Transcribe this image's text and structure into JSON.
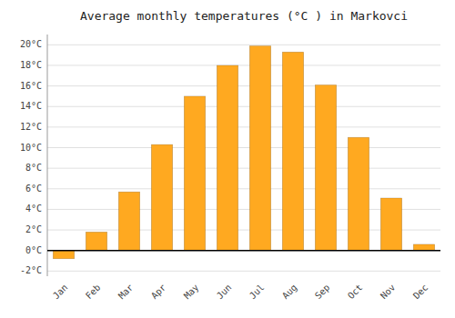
{
  "chart_data": {
    "type": "bar",
    "title": "Average monthly temperatures (°C ) in Markovci",
    "categories": [
      "Jan",
      "Feb",
      "Mar",
      "Apr",
      "May",
      "Jun",
      "Jul",
      "Aug",
      "Sep",
      "Oct",
      "Nov",
      "Dec"
    ],
    "values": [
      -0.8,
      1.8,
      5.7,
      10.3,
      15.0,
      18.0,
      19.9,
      19.3,
      16.1,
      11.0,
      5.1,
      0.6
    ],
    "color": "#FFA920",
    "ylim": [
      -2.5,
      21
    ],
    "yticks": [
      {
        "value": -2,
        "label": "-2°C"
      },
      {
        "value": 0,
        "label": "0°C"
      },
      {
        "value": 2,
        "label": "2°C"
      },
      {
        "value": 4,
        "label": "4°C"
      },
      {
        "value": 6,
        "label": "6°C"
      },
      {
        "value": 8,
        "label": "8°C"
      },
      {
        "value": 10,
        "label": "10°C"
      },
      {
        "value": 12,
        "label": "12°C"
      },
      {
        "value": 14,
        "label": "14°C"
      },
      {
        "value": 16,
        "label": "16°C"
      },
      {
        "value": 18,
        "label": "18°C"
      },
      {
        "value": 20,
        "label": "20°C"
      }
    ],
    "grid": true
  }
}
